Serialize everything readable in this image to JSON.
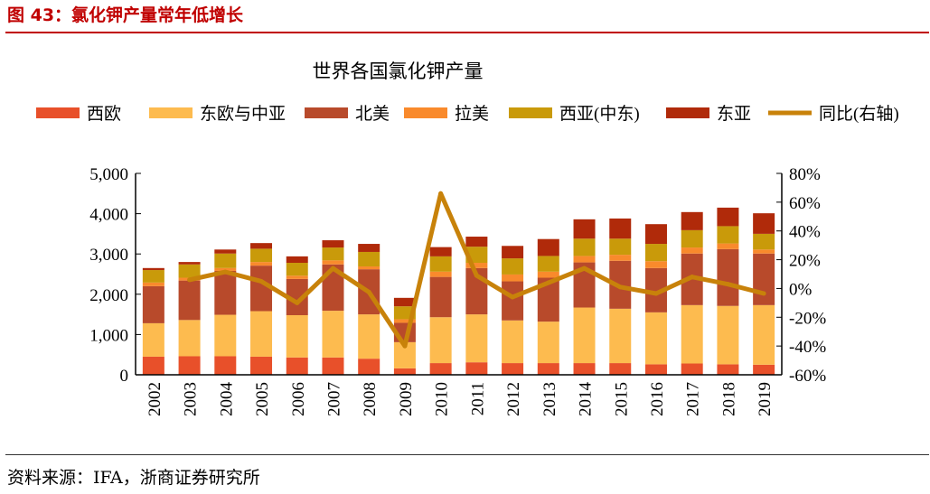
{
  "figure": {
    "title": "图 43：氯化钾产量常年低增长",
    "source": "资料来源：IFA，浙商证券研究所"
  },
  "chart_data": {
    "type": "bar",
    "stacked": true,
    "title": "世界各国氯化钾产量",
    "categories": [
      "2002",
      "2003",
      "2004",
      "2005",
      "2006",
      "2007",
      "2008",
      "2009",
      "2010",
      "2011",
      "2012",
      "2013",
      "2014",
      "2015",
      "2016",
      "2017",
      "2018",
      "2019"
    ],
    "series": [
      {
        "name": "西欧",
        "color": "#E8502A",
        "values": [
          450,
          460,
          460,
          450,
          430,
          430,
          400,
          160,
          290,
          310,
          290,
          290,
          290,
          290,
          260,
          280,
          260,
          250
        ]
      },
      {
        "name": "东欧与中亚",
        "color": "#FDBB4F",
        "values": [
          830,
          900,
          1030,
          1130,
          1050,
          1160,
          1100,
          650,
          1140,
          1190,
          1060,
          1030,
          1380,
          1350,
          1290,
          1450,
          1450,
          1480
        ]
      },
      {
        "name": "北美",
        "color": "#B84A2B",
        "values": [
          920,
          980,
          1090,
          1130,
          900,
          1150,
          1120,
          480,
          1000,
          1150,
          970,
          1090,
          1120,
          1190,
          1100,
          1280,
          1410,
          1280
        ]
      },
      {
        "name": "拉美",
        "color": "#F98A2C",
        "values": [
          90,
          70,
          70,
          90,
          80,
          100,
          70,
          90,
          130,
          130,
          170,
          150,
          160,
          150,
          170,
          150,
          140,
          100
        ]
      },
      {
        "name": "西亚(中东)",
        "color": "#C99A0A",
        "values": [
          310,
          330,
          360,
          330,
          320,
          320,
          360,
          320,
          380,
          400,
          400,
          390,
          430,
          400,
          430,
          430,
          430,
          390
        ]
      },
      {
        "name": "东亚",
        "color": "#B02A0A",
        "values": [
          50,
          60,
          100,
          140,
          160,
          180,
          200,
          210,
          230,
          250,
          310,
          420,
          480,
          500,
          490,
          450,
          460,
          510
        ]
      }
    ],
    "line_series": {
      "name": "同比(右轴)",
      "color": "#C8820A",
      "axis": "right",
      "x": [
        "2003",
        "2004",
        "2005",
        "2006",
        "2007",
        "2008",
        "2009",
        "2010",
        "2011",
        "2012",
        "2013",
        "2014",
        "2015",
        "2016",
        "2017",
        "2018",
        "2019"
      ],
      "values": [
        6,
        11.5,
        5,
        -10,
        14,
        -2.5,
        -40,
        66,
        9,
        -6,
        4,
        14,
        1,
        -3.5,
        8,
        3,
        -3.5
      ]
    },
    "ylim": [
      0,
      5000
    ],
    "yticks": [
      "0",
      "1,000",
      "2,000",
      "3,000",
      "4,000",
      "5,000"
    ],
    "y2lim": [
      -60,
      80
    ],
    "y2ticks": [
      "-60%",
      "-40%",
      "-20%",
      "0%",
      "20%",
      "40%",
      "60%",
      "80%"
    ],
    "legend_position": "top",
    "grid": false
  }
}
